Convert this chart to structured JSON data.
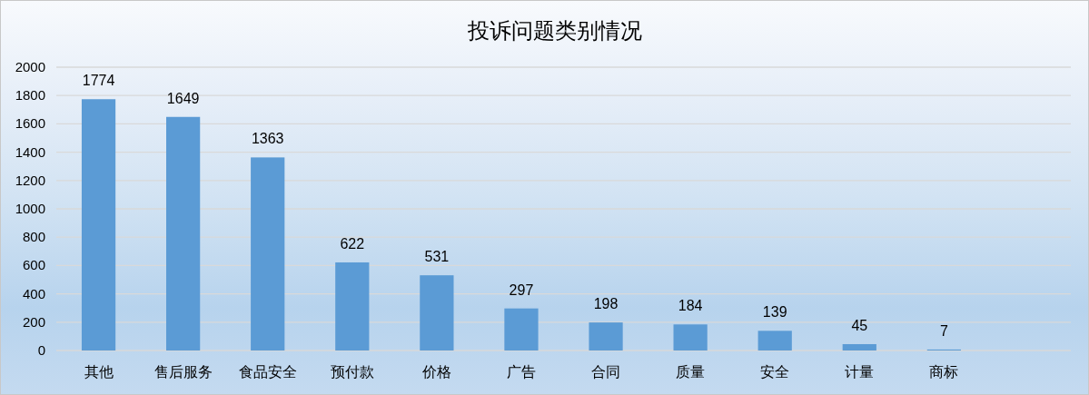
{
  "chart_data": {
    "type": "bar",
    "title": "投诉问题类别情况",
    "categories": [
      "其他",
      "售后服务",
      "食品安全",
      "预付款",
      "价格",
      "广告",
      "合同",
      "质量",
      "安全",
      "计量",
      "商标",
      null
    ],
    "values": [
      1774,
      1649,
      1363,
      622,
      531,
      297,
      198,
      184,
      139,
      45,
      7,
      null
    ],
    "color": "#5b9bd5",
    "ylim": [
      0,
      2000
    ],
    "yticks": [
      0,
      200,
      400,
      600,
      800,
      1000,
      1200,
      1400,
      1600,
      1800,
      2000
    ],
    "grid": "y",
    "data_labels": true
  }
}
